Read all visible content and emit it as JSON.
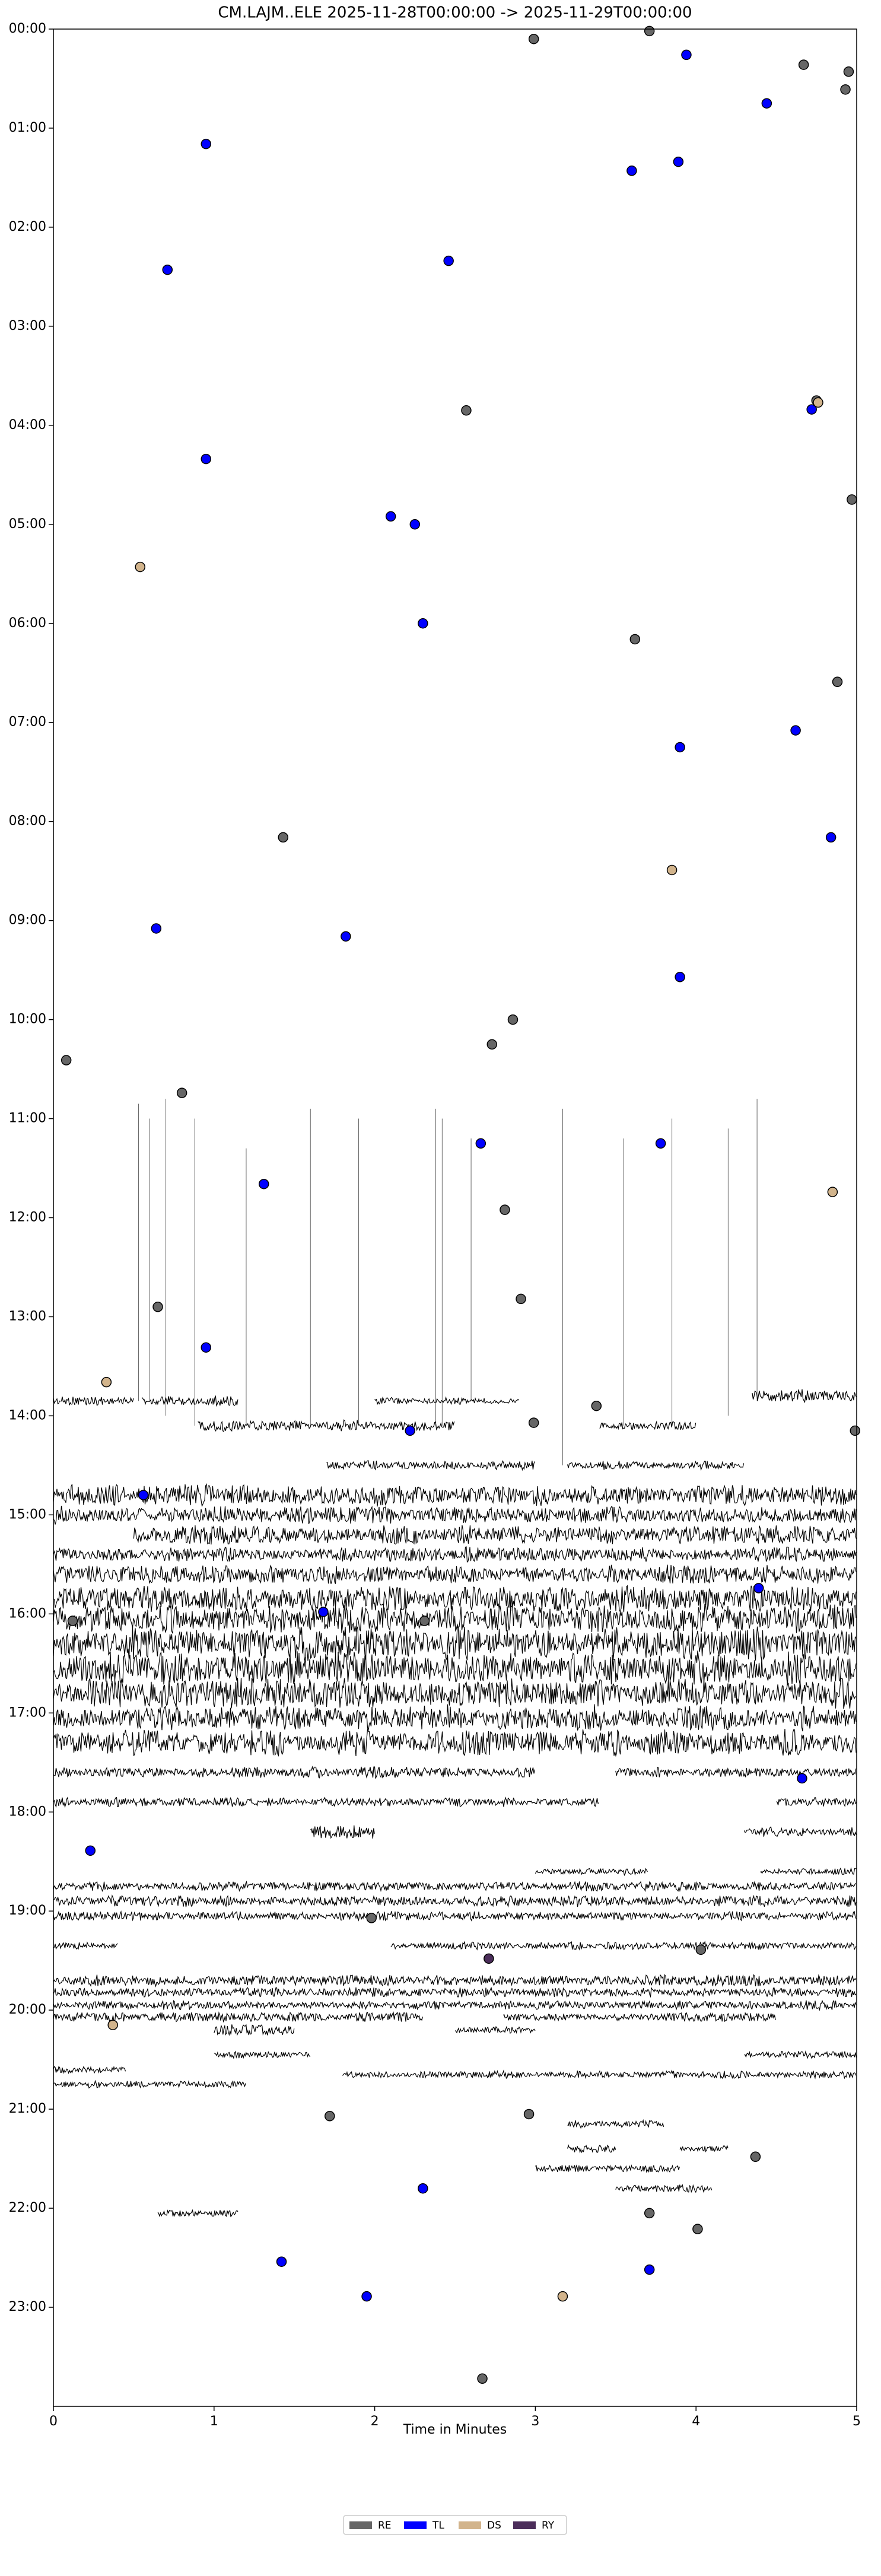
{
  "chart_data": {
    "type": "dayplot",
    "title": "CM.LAJM..ELE  2025-11-28T00:00:00 -> 2025-11-29T00:00:00",
    "xlabel": "Time in Minutes",
    "xlim": [
      0,
      5
    ],
    "xticks": [
      0,
      1,
      2,
      3,
      4,
      5
    ],
    "ylim": [
      24,
      0
    ],
    "yticks": [
      {
        "value": 0,
        "label": "00:00"
      },
      {
        "value": 1,
        "label": "01:00"
      },
      {
        "value": 2,
        "label": "02:00"
      },
      {
        "value": 3,
        "label": "03:00"
      },
      {
        "value": 4,
        "label": "04:00"
      },
      {
        "value": 5,
        "label": "05:00"
      },
      {
        "value": 6,
        "label": "06:00"
      },
      {
        "value": 7,
        "label": "07:00"
      },
      {
        "value": 8,
        "label": "08:00"
      },
      {
        "value": 9,
        "label": "09:00"
      },
      {
        "value": 10,
        "label": "10:00"
      },
      {
        "value": 11,
        "label": "11:00"
      },
      {
        "value": 12,
        "label": "12:00"
      },
      {
        "value": 13,
        "label": "13:00"
      },
      {
        "value": 14,
        "label": "14:00"
      },
      {
        "value": 15,
        "label": "15:00"
      },
      {
        "value": 16,
        "label": "16:00"
      },
      {
        "value": 17,
        "label": "17:00"
      },
      {
        "value": 18,
        "label": "18:00"
      },
      {
        "value": 19,
        "label": "19:00"
      },
      {
        "value": 20,
        "label": "20:00"
      },
      {
        "value": 21,
        "label": "21:00"
      },
      {
        "value": 22,
        "label": "22:00"
      },
      {
        "value": 23,
        "label": "23:00"
      }
    ],
    "series": [
      {
        "name": "RE",
        "color": "#666666",
        "x": [
          3.71,
          2.99,
          4.67,
          4.95,
          4.93,
          4.75,
          2.57,
          4.97,
          3.62,
          4.88,
          1.43,
          2.86,
          2.73,
          0.08,
          0.8,
          2.81,
          0.65,
          2.91,
          3.38,
          2.99,
          4.99,
          0.12,
          2.31,
          1.98,
          4.03,
          1.72,
          2.96,
          4.37,
          3.71,
          4.01,
          2.67
        ],
        "y": [
          0.02,
          0.1,
          0.36,
          0.43,
          0.61,
          3.75,
          3.85,
          4.75,
          6.16,
          6.59,
          8.16,
          10.0,
          10.25,
          10.41,
          10.74,
          11.92,
          12.9,
          12.82,
          13.9,
          14.07,
          14.15,
          16.07,
          16.07,
          19.07,
          19.39,
          21.07,
          21.05,
          21.48,
          22.05,
          22.21,
          23.72
        ]
      },
      {
        "name": "TL",
        "color": "#0000ff",
        "x": [
          3.94,
          4.44,
          0.95,
          3.89,
          3.6,
          0.71,
          2.46,
          4.72,
          0.95,
          2.1,
          2.25,
          2.3,
          4.62,
          3.9,
          4.84,
          0.64,
          1.82,
          3.9,
          2.66,
          3.78,
          1.31,
          0.95,
          2.22,
          0.56,
          1.68,
          4.39,
          4.66,
          0.23,
          2.3,
          1.42,
          1.95,
          3.71
        ],
        "y": [
          0.26,
          0.75,
          1.16,
          1.34,
          1.43,
          2.43,
          2.34,
          3.84,
          4.34,
          4.92,
          5.0,
          6.0,
          7.08,
          7.25,
          8.16,
          9.08,
          9.16,
          9.57,
          11.25,
          11.25,
          11.66,
          13.31,
          14.15,
          14.8,
          15.98,
          15.74,
          17.66,
          18.39,
          21.8,
          22.54,
          22.89,
          22.62
        ]
      },
      {
        "name": "DS",
        "color": "#d2b48c",
        "x": [
          0.54,
          3.85,
          4.76,
          4.85,
          0.33,
          0.37,
          3.17
        ],
        "y": [
          5.43,
          8.49,
          3.77,
          11.74,
          13.66,
          20.15,
          22.89
        ]
      },
      {
        "name": "RY",
        "color": "#4b2d5a",
        "x": [
          2.71
        ],
        "y": [
          19.48
        ]
      }
    ],
    "spikes": [
      {
        "x": 0.53,
        "top": 10.85,
        "bottom": 13.85
      },
      {
        "x": 0.6,
        "top": 11.0,
        "bottom": 13.85
      },
      {
        "x": 0.7,
        "top": 10.8,
        "bottom": 14.0
      },
      {
        "x": 0.88,
        "top": 11.0,
        "bottom": 14.1
      },
      {
        "x": 1.2,
        "top": 11.3,
        "bottom": 14.1
      },
      {
        "x": 1.6,
        "top": 10.9,
        "bottom": 14.1
      },
      {
        "x": 1.9,
        "top": 11.0,
        "bottom": 14.1
      },
      {
        "x": 2.38,
        "top": 10.9,
        "bottom": 14.1
      },
      {
        "x": 2.42,
        "top": 11.0,
        "bottom": 14.1
      },
      {
        "x": 2.6,
        "top": 11.2,
        "bottom": 13.85
      },
      {
        "x": 3.17,
        "top": 10.9,
        "bottom": 14.5
      },
      {
        "x": 3.55,
        "top": 11.2,
        "bottom": 14.1
      },
      {
        "x": 3.85,
        "top": 11.0,
        "bottom": 14.1
      },
      {
        "x": 4.2,
        "top": 11.1,
        "bottom": 14.0
      },
      {
        "x": 4.38,
        "top": 10.8,
        "bottom": 13.85
      }
    ],
    "traces": [
      {
        "y": 13.85,
        "x0": 0,
        "x1": 0.5,
        "amp": 0.05
      },
      {
        "y": 13.85,
        "x0": 0.55,
        "x1": 1.15,
        "amp": 0.05
      },
      {
        "y": 13.85,
        "x0": 2.0,
        "x1": 2.9,
        "amp": 0.04
      },
      {
        "y": 13.8,
        "x0": 4.35,
        "x1": 5,
        "amp": 0.07
      },
      {
        "y": 14.1,
        "x0": 0.9,
        "x1": 2.5,
        "amp": 0.06
      },
      {
        "y": 14.1,
        "x0": 3.4,
        "x1": 4.0,
        "amp": 0.05
      },
      {
        "y": 14.5,
        "x0": 1.7,
        "x1": 3.0,
        "amp": 0.05
      },
      {
        "y": 14.5,
        "x0": 3.2,
        "x1": 4.3,
        "amp": 0.05
      },
      {
        "y": 14.8,
        "x0": 0,
        "x1": 5,
        "amp": 0.12
      },
      {
        "y": 15.0,
        "x0": 0,
        "x1": 5,
        "amp": 0.1
      },
      {
        "y": 15.2,
        "x0": 0.5,
        "x1": 5,
        "amp": 0.1
      },
      {
        "y": 15.4,
        "x0": 0,
        "x1": 5,
        "amp": 0.08
      },
      {
        "y": 15.6,
        "x0": 0,
        "x1": 5,
        "amp": 0.1
      },
      {
        "y": 15.85,
        "x0": 0,
        "x1": 5,
        "amp": 0.14
      },
      {
        "y": 16.05,
        "x0": 0,
        "x1": 5,
        "amp": 0.16
      },
      {
        "y": 16.3,
        "x0": 0,
        "x1": 5,
        "amp": 0.18
      },
      {
        "y": 16.55,
        "x0": 0,
        "x1": 5,
        "amp": 0.18
      },
      {
        "y": 16.8,
        "x0": 0,
        "x1": 5,
        "amp": 0.16
      },
      {
        "y": 17.05,
        "x0": 0,
        "x1": 5,
        "amp": 0.14
      },
      {
        "y": 17.3,
        "x0": 0,
        "x1": 5,
        "amp": 0.14
      },
      {
        "y": 17.6,
        "x0": 0,
        "x1": 3.0,
        "amp": 0.06
      },
      {
        "y": 17.6,
        "x0": 3.5,
        "x1": 5,
        "amp": 0.06
      },
      {
        "y": 17.9,
        "x0": 0,
        "x1": 3.4,
        "amp": 0.05
      },
      {
        "y": 17.9,
        "x0": 4.5,
        "x1": 5,
        "amp": 0.05
      },
      {
        "y": 18.2,
        "x0": 4.3,
        "x1": 5,
        "amp": 0.05
      },
      {
        "y": 18.2,
        "x0": 1.6,
        "x1": 2.0,
        "amp": 0.08
      },
      {
        "y": 18.6,
        "x0": 3.0,
        "x1": 3.7,
        "amp": 0.04
      },
      {
        "y": 18.6,
        "x0": 4.4,
        "x1": 5,
        "amp": 0.04
      },
      {
        "y": 18.75,
        "x0": 0,
        "x1": 5,
        "amp": 0.05
      },
      {
        "y": 18.9,
        "x0": 0,
        "x1": 5,
        "amp": 0.06
      },
      {
        "y": 19.05,
        "x0": 0,
        "x1": 5,
        "amp": 0.05
      },
      {
        "y": 19.35,
        "x0": 0,
        "x1": 0.4,
        "amp": 0.04
      },
      {
        "y": 19.35,
        "x0": 2.1,
        "x1": 5,
        "amp": 0.04
      },
      {
        "y": 19.7,
        "x0": 0,
        "x1": 5,
        "amp": 0.06
      },
      {
        "y": 19.82,
        "x0": 0,
        "x1": 5,
        "amp": 0.05
      },
      {
        "y": 19.95,
        "x0": 0,
        "x1": 5,
        "amp": 0.05
      },
      {
        "y": 20.07,
        "x0": 0,
        "x1": 2.3,
        "amp": 0.05
      },
      {
        "y": 20.07,
        "x0": 2.8,
        "x1": 4.5,
        "amp": 0.05
      },
      {
        "y": 20.2,
        "x0": 1.0,
        "x1": 1.5,
        "amp": 0.07
      },
      {
        "y": 20.2,
        "x0": 2.5,
        "x1": 3.0,
        "amp": 0.04
      },
      {
        "y": 20.45,
        "x0": 1.0,
        "x1": 1.6,
        "amp": 0.04
      },
      {
        "y": 20.45,
        "x0": 4.3,
        "x1": 5,
        "amp": 0.04
      },
      {
        "y": 20.6,
        "x0": 0,
        "x1": 0.45,
        "amp": 0.04
      },
      {
        "y": 20.65,
        "x0": 1.8,
        "x1": 5,
        "amp": 0.04
      },
      {
        "y": 20.75,
        "x0": 0,
        "x1": 1.2,
        "amp": 0.04
      },
      {
        "y": 21.15,
        "x0": 3.2,
        "x1": 3.8,
        "amp": 0.04
      },
      {
        "y": 21.4,
        "x0": 3.2,
        "x1": 3.5,
        "amp": 0.04
      },
      {
        "y": 21.4,
        "x0": 3.9,
        "x1": 4.2,
        "amp": 0.04
      },
      {
        "y": 21.6,
        "x0": 3.0,
        "x1": 3.9,
        "amp": 0.04
      },
      {
        "y": 21.8,
        "x0": 3.5,
        "x1": 4.1,
        "amp": 0.04
      },
      {
        "y": 22.05,
        "x0": 0.65,
        "x1": 1.15,
        "amp": 0.05
      }
    ]
  }
}
